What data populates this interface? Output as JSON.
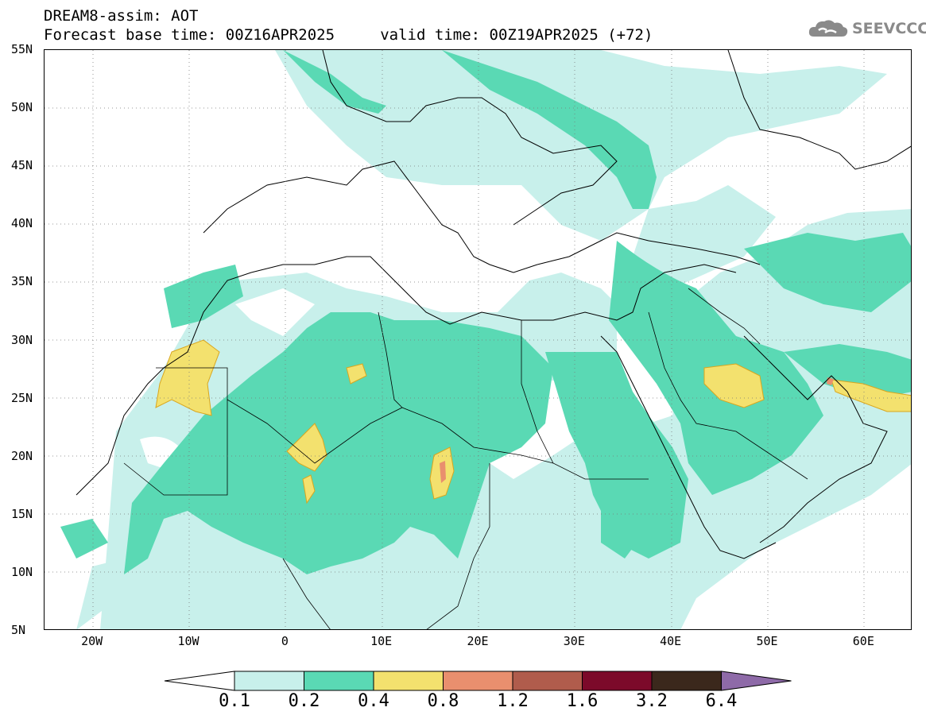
{
  "header": {
    "line1": "DREAM8-assim: AOT",
    "line2": "Forecast base time: 00Z16APR2025     valid time: 00Z19APR2025 (+72)"
  },
  "logo": {
    "text": "SEEVCCC",
    "icon": "cloud-icon",
    "color": "#8a8a8a"
  },
  "map": {
    "lat_ticks": [
      "55N",
      "50N",
      "45N",
      "40N",
      "35N",
      "30N",
      "25N",
      "20N",
      "15N",
      "10N",
      "5N"
    ],
    "lon_ticks": [
      "20W",
      "10W",
      "0",
      "10E",
      "20E",
      "30E",
      "40E",
      "50E",
      "60E"
    ],
    "extent": {
      "lon_min": -25,
      "lon_max": 65,
      "lat_min": 5,
      "lat_max": 55
    },
    "grid": "dotted"
  },
  "colorbar": {
    "labels": [
      "0.1",
      "0.2",
      "0.4",
      "0.8",
      "1.2",
      "1.6",
      "3.2",
      "6.4"
    ],
    "colors": [
      "#c8f0eb",
      "#5ad9b4",
      "#f3e16e",
      "#e98f6e",
      "#b05c4c",
      "#7c0a2a",
      "#3b281c",
      "#8e6aa8"
    ]
  }
}
